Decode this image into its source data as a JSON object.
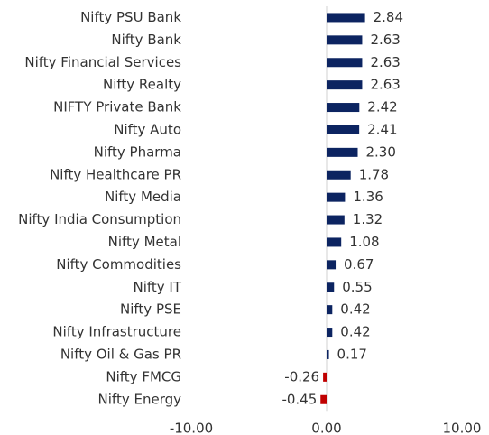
{
  "chart_data": {
    "type": "bar",
    "orientation": "horizontal",
    "categories": [
      "Nifty PSU Bank",
      "Nifty Bank",
      "Nifty Financial Services",
      "Nifty Realty",
      "NIFTY Private Bank",
      "Nifty Auto",
      "Nifty Pharma",
      "Nifty Healthcare PR",
      "Nifty Media",
      "Nifty India Consumption",
      "Nifty Metal",
      "Nifty Commodities",
      "Nifty IT",
      "Nifty PSE",
      "Nifty Infrastructure",
      "Nifty Oil & Gas PR",
      "Nifty FMCG",
      "Nifty Energy"
    ],
    "values": [
      2.84,
      2.63,
      2.63,
      2.63,
      2.42,
      2.41,
      2.3,
      1.78,
      1.36,
      1.32,
      1.08,
      0.67,
      0.55,
      0.42,
      0.42,
      0.17,
      -0.26,
      -0.45
    ],
    "value_labels": [
      "2.84",
      "2.63",
      "2.63",
      "2.63",
      "2.42",
      "2.41",
      "2.30",
      "1.78",
      "1.36",
      "1.32",
      "1.08",
      "0.67",
      "0.55",
      "0.42",
      "0.42",
      "0.17",
      "-0.26",
      "-0.45"
    ],
    "color": "#0c2461",
    "negative_color": "#c00000",
    "xlim": [
      -10,
      10
    ],
    "xticks": [
      {
        "value": -10,
        "label": "-10.00"
      },
      {
        "value": 0,
        "label": "0.00"
      },
      {
        "value": 10,
        "label": "10.00"
      }
    ]
  }
}
